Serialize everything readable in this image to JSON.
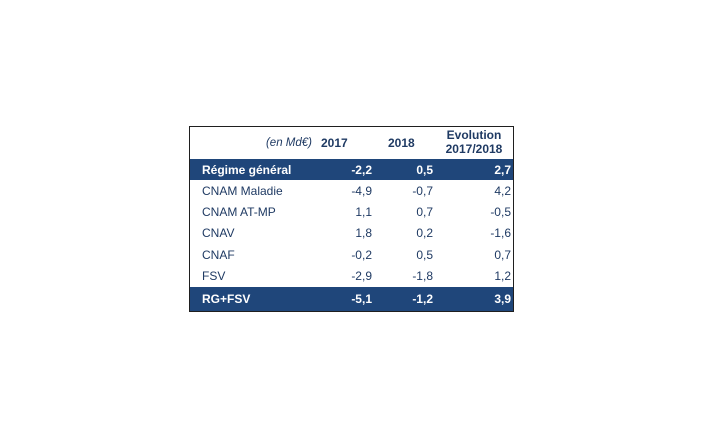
{
  "table": {
    "unit_label": "(en Md€)",
    "columns": [
      "2017",
      "2018"
    ],
    "evolution_header": [
      "Evolution",
      "2017/2018"
    ],
    "rows": [
      {
        "label": "Régime général",
        "v2017": "-2,2",
        "v2018": "0,5",
        "evo": "2,7",
        "highlight": true
      },
      {
        "label": "CNAM Maladie",
        "v2017": "-4,9",
        "v2018": "-0,7",
        "evo": "4,2",
        "highlight": false
      },
      {
        "label": "CNAM AT-MP",
        "v2017": "1,1",
        "v2018": "0,7",
        "evo": "-0,5",
        "highlight": false
      },
      {
        "label": "CNAV",
        "v2017": "1,8",
        "v2018": "0,2",
        "evo": "-1,6",
        "highlight": false
      },
      {
        "label": "CNAF",
        "v2017": "-0,2",
        "v2018": "0,5",
        "evo": "0,7",
        "highlight": false
      },
      {
        "label": "FSV",
        "v2017": "-2,9",
        "v2018": "-1,8",
        "evo": "1,2",
        "highlight": false
      },
      {
        "label": "RG+FSV",
        "v2017": "-5,1",
        "v2018": "-1,2",
        "evo": "3,9",
        "highlight": true
      }
    ]
  },
  "colors": {
    "band": "#1f467a",
    "text": "#1f3a63"
  }
}
